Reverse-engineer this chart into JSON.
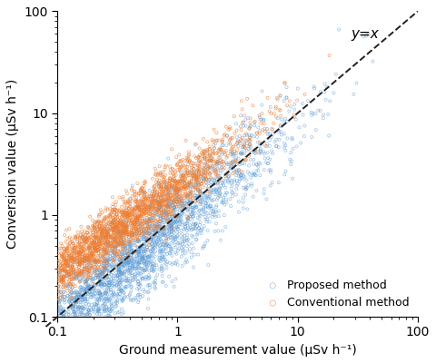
{
  "title": "",
  "xlabel": "Ground measurement value (μSv h⁻¹)",
  "ylabel": "Conversion value (μSv h⁻¹)",
  "xlim": [
    0.1,
    100
  ],
  "ylim": [
    0.1,
    100
  ],
  "xticks": [
    0.1,
    1,
    10,
    100
  ],
  "yticks": [
    0.1,
    1,
    10,
    100
  ],
  "proposed_color": "#5B9BD5",
  "conventional_color": "#ED7D31",
  "dashed_line_color": "#222222",
  "legend_labels": [
    "Proposed method",
    "Conventional method"
  ],
  "annotation_text": "y=x",
  "n_proposed": 3000,
  "n_conventional": 2500,
  "seed": 42
}
